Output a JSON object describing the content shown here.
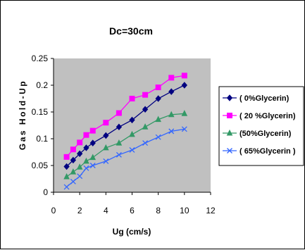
{
  "chart_data": {
    "type": "line",
    "title": "Dc=30cm",
    "xlabel": "Ug (cm/s)",
    "ylabel": "Gas Hold-Up",
    "xlim": [
      0,
      12
    ],
    "ylim": [
      0,
      0.25
    ],
    "xticks": [
      "0",
      "2",
      "4",
      "6",
      "8",
      "10",
      "12"
    ],
    "yticks": [
      "0",
      "0.05",
      "0.1",
      "0.15",
      "0.2",
      "0.25"
    ],
    "plot_background": "#c0c0c0",
    "grid": false,
    "legend_position": "right",
    "series": [
      {
        "name": "( 0%Glycerin)",
        "color": "#000080",
        "marker": "diamond",
        "x": [
          1,
          1.5,
          2,
          2.5,
          3,
          4,
          5,
          6,
          7,
          8,
          9,
          10
        ],
        "y": [
          0.048,
          0.06,
          0.072,
          0.083,
          0.092,
          0.106,
          0.122,
          0.135,
          0.155,
          0.175,
          0.188,
          0.2
        ]
      },
      {
        "name": "( 20 %Glycerin)",
        "color": "#ff00ff",
        "marker": "square",
        "x": [
          1,
          1.5,
          2,
          2.5,
          3,
          4,
          5,
          6,
          7,
          8,
          9,
          10
        ],
        "y": [
          0.066,
          0.08,
          0.093,
          0.107,
          0.115,
          0.13,
          0.148,
          0.175,
          0.182,
          0.196,
          0.214,
          0.218
        ]
      },
      {
        "name": "(50%Glycerin)",
        "color": "#339966",
        "marker": "triangle",
        "x": [
          1,
          1.5,
          2,
          2.5,
          3,
          4,
          5,
          6,
          7,
          8,
          9,
          10
        ],
        "y": [
          0.029,
          0.038,
          0.047,
          0.058,
          0.065,
          0.083,
          0.092,
          0.108,
          0.122,
          0.136,
          0.145,
          0.147
        ]
      },
      {
        "name": "( 65%Glycerin )",
        "color": "#3366ff",
        "marker": "x",
        "x": [
          1,
          1.5,
          2,
          2.5,
          3,
          4,
          5,
          6,
          7,
          8,
          9,
          10
        ],
        "y": [
          0.01,
          0.02,
          0.03,
          0.045,
          0.05,
          0.058,
          0.07,
          0.079,
          0.092,
          0.103,
          0.114,
          0.118
        ]
      }
    ]
  }
}
